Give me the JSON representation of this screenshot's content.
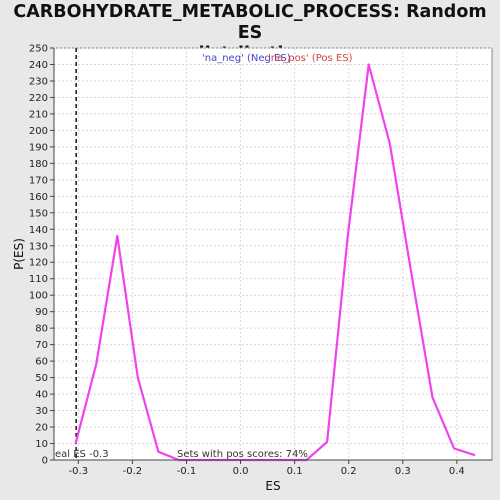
{
  "chart_data": {
    "type": "line",
    "title_line1": "CARBOHYDRATE_METABOLIC_PROCESS: Random ES",
    "title_line2": "distribution",
    "xlabel": "ES",
    "ylabel": "P(ES)",
    "xlim": [
      -0.345,
      0.465
    ],
    "ylim": [
      0,
      250
    ],
    "x_ticks": [
      -0.3,
      -0.2,
      -0.1,
      0.0,
      0.1,
      0.2,
      0.3,
      0.4
    ],
    "x_tick_labels": [
      "-0.3",
      "-0.2",
      "-0.1",
      "0.0",
      "0.1",
      "0.2",
      "0.3",
      "0.4"
    ],
    "y_ticks": [
      0,
      10,
      20,
      30,
      40,
      50,
      60,
      70,
      80,
      90,
      100,
      110,
      120,
      130,
      140,
      150,
      160,
      170,
      180,
      190,
      200,
      210,
      220,
      230,
      240,
      250
    ],
    "grid": true,
    "legend": {
      "placement": "top-center",
      "entries": [
        {
          "label": "'na_neg' (Neg ES)",
          "color": "#4444cc"
        },
        {
          "label": "'na_pos' (Pos ES)",
          "color": "#cc4444"
        }
      ]
    },
    "series": [
      {
        "color": "#ee44ee",
        "x": [
          -0.305,
          -0.267,
          -0.228,
          -0.19,
          -0.152,
          -0.114,
          -0.076,
          -0.037,
          0.0,
          0.04,
          0.08,
          0.122,
          0.16,
          0.198,
          0.237,
          0.276,
          0.315,
          0.355,
          0.395,
          0.433
        ],
        "y": [
          10,
          58,
          136,
          50,
          5,
          0,
          0,
          0,
          0,
          0,
          0,
          0,
          11,
          135,
          240,
          192,
          115,
          38,
          7,
          3
        ]
      }
    ],
    "reference_line": {
      "x": -0.304,
      "style": "dashed",
      "color": "#222222",
      "label": "eal ES -0.3"
    },
    "annotation": "Sets with pos scores: 74%"
  }
}
